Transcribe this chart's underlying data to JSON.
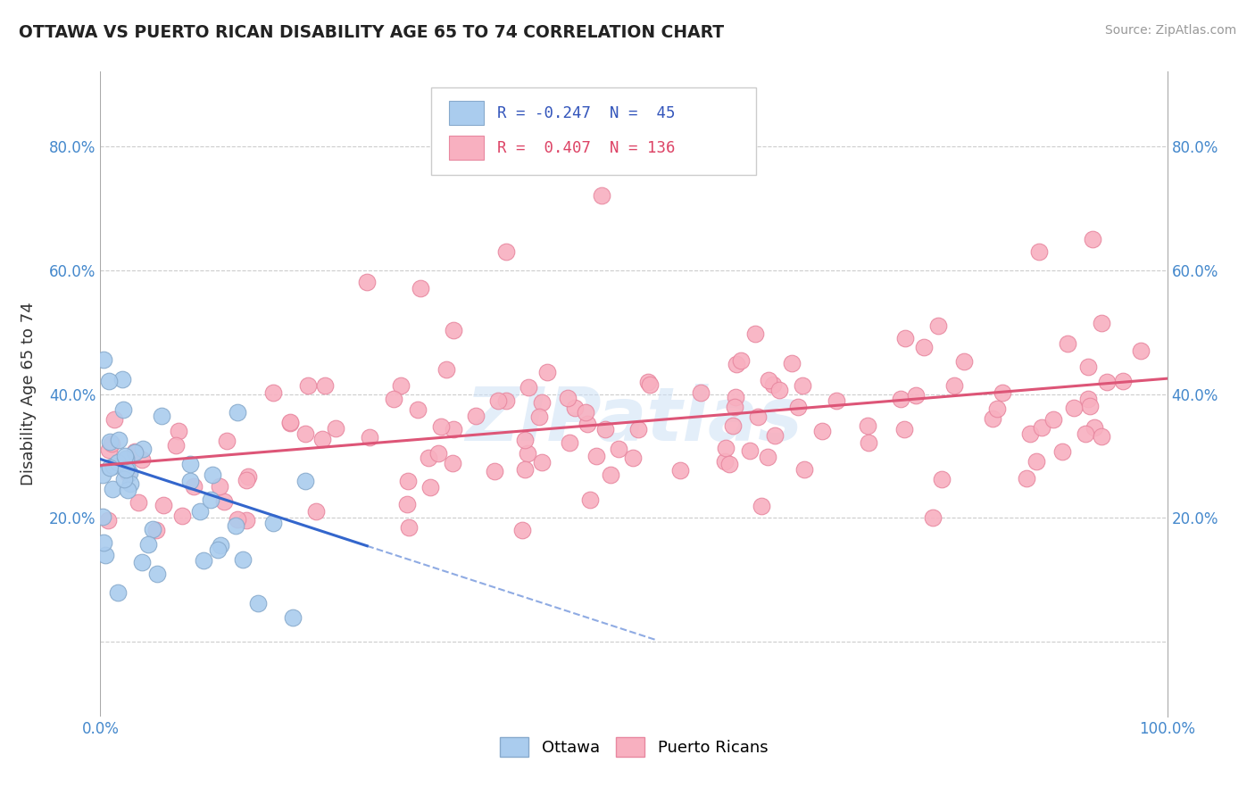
{
  "title": "OTTAWA VS PUERTO RICAN DISABILITY AGE 65 TO 74 CORRELATION CHART",
  "source": "Source: ZipAtlas.com",
  "ylabel": "Disability Age 65 to 74",
  "xlim": [
    0.0,
    1.0
  ],
  "ylim": [
    -0.12,
    0.92
  ],
  "yticks": [
    0.0,
    0.2,
    0.4,
    0.6,
    0.8
  ],
  "grid_color": "#cccccc",
  "ottawa_color": "#aaccee",
  "ottawa_edge_color": "#88aacc",
  "puerto_rican_color": "#f8b0c0",
  "puerto_rican_edge_color": "#e888a0",
  "trend_ottawa_color": "#3366cc",
  "trend_pr_color": "#dd5577",
  "R_ottawa": -0.247,
  "N_ottawa": 45,
  "R_pr": 0.407,
  "N_pr": 136,
  "watermark": "ZIPatlas",
  "ottawa_trend_x0": 0.0,
  "ottawa_trend_y0": 0.295,
  "ottawa_trend_x1": 0.25,
  "ottawa_trend_y1": 0.155,
  "ottawa_trend_solid_end": 0.25,
  "ottawa_trend_dash_end": 0.52,
  "pr_trend_x0": 0.0,
  "pr_trend_y0": 0.285,
  "pr_trend_x1": 1.0,
  "pr_trend_y1": 0.425,
  "legend_r_ottawa": "R = -0.247",
  "legend_n_ottawa": "N =  45",
  "legend_r_pr": "R =  0.407",
  "legend_n_pr": "N = 136"
}
